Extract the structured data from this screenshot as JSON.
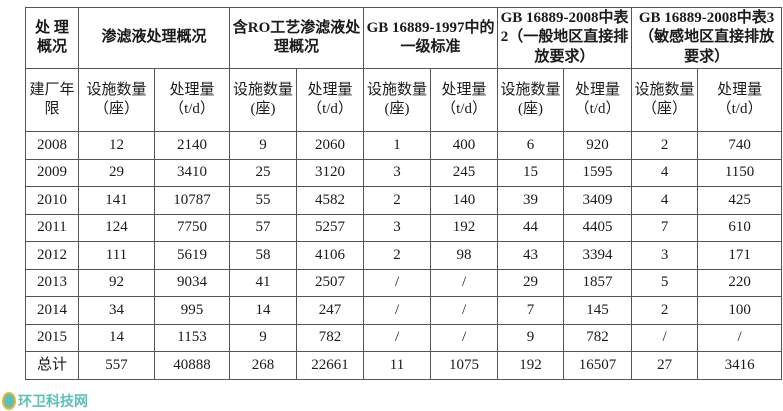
{
  "header": {
    "corner_top": "处 理 概况",
    "groups": [
      "渗滤液处理概况",
      "含RO工艺渗滤液处理概况",
      "GB 16889-1997中的一级标准",
      "GB 16889-2008中表2（一般地区直接排放要求）",
      "GB 16889-2008中表3（敏感地区直接排放要求）"
    ],
    "corner_bottom": "建厂年限",
    "sub": [
      "设施数量（座）",
      "处理量（t/d）",
      "设施数量(座)",
      "处理量（t/d）",
      "设施数量(座)",
      "处理量（t/d）",
      "设施数量(座)",
      "处理量（t/d）",
      "设施数量（座）",
      "处理量（t/d）"
    ]
  },
  "rows": [
    [
      "2008",
      "12",
      "2140",
      "9",
      "2060",
      "1",
      "400",
      "6",
      "920",
      "2",
      "740"
    ],
    [
      "2009",
      "29",
      "3410",
      "25",
      "3120",
      "3",
      "245",
      "15",
      "1595",
      "4",
      "1150"
    ],
    [
      "2010",
      "141",
      "10787",
      "55",
      "4582",
      "2",
      "140",
      "39",
      "3409",
      "4",
      "425"
    ],
    [
      "2011",
      "124",
      "7750",
      "57",
      "5257",
      "3",
      "192",
      "44",
      "4405",
      "7",
      "610"
    ],
    [
      "2012",
      "111",
      "5619",
      "58",
      "4106",
      "2",
      "98",
      "43",
      "3394",
      "3",
      "171"
    ],
    [
      "2013",
      "92",
      "9034",
      "41",
      "2507",
      "/",
      "/",
      "29",
      "1857",
      "5",
      "220"
    ],
    [
      "2014",
      "34",
      "995",
      "14",
      "247",
      "/",
      "/",
      "7",
      "145",
      "2",
      "100"
    ],
    [
      "2015",
      "14",
      "1153",
      "9",
      "782",
      "/",
      "/",
      "9",
      "782",
      "/",
      "/"
    ],
    [
      "总计",
      "557",
      "40888",
      "268",
      "22661",
      "11",
      "1075",
      "192",
      "16507",
      "27",
      "3416"
    ]
  ],
  "watermark": "环卫科技网"
}
